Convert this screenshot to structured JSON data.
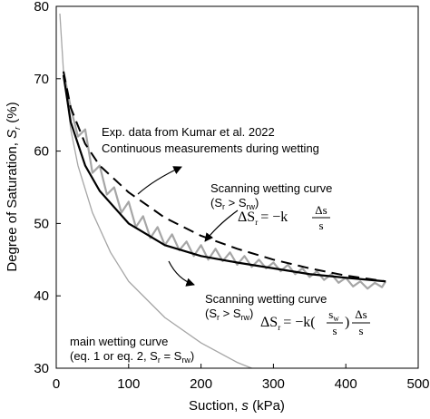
{
  "chart_data": {
    "type": "line",
    "x_label": {
      "text": "Suction, ",
      "var": "s",
      "unit": " (kPa)"
    },
    "y_label": {
      "text": "Degree of Saturation, ",
      "var": "S",
      "sub": "r",
      "unit": " (%)"
    },
    "xlim": [
      0,
      500
    ],
    "xticks": [
      0,
      100,
      200,
      300,
      400,
      500
    ],
    "ylim": [
      30,
      80
    ],
    "yticks": [
      30,
      40,
      50,
      60,
      70,
      80
    ],
    "series": [
      {
        "color": "#a6a6a6",
        "width": 1.3,
        "dash": false,
        "x": [
          5,
          10,
          20,
          30,
          50,
          75,
          100,
          150,
          200,
          250,
          270
        ],
        "values": [
          79,
          71,
          63,
          58,
          51.5,
          46,
          42,
          37,
          33.5,
          30.8,
          30
        ]
      },
      {
        "color": "#a6a6a6",
        "width": 2.2,
        "dash": false,
        "x": [
          10,
          20,
          30,
          40,
          50,
          60,
          70,
          80,
          90,
          100,
          110,
          120,
          130,
          140,
          150,
          160,
          170,
          180,
          190,
          200,
          210,
          220,
          230,
          240,
          250,
          260,
          270,
          280,
          290,
          300,
          310,
          320,
          330,
          340,
          350,
          360,
          370,
          380,
          390,
          400,
          410,
          420,
          430,
          440,
          450,
          455
        ],
        "values": [
          71,
          66,
          62,
          63,
          57,
          58,
          54,
          55,
          51.5,
          53,
          49.5,
          51,
          48,
          49.5,
          47,
          48.5,
          46.3,
          47.5,
          45.5,
          47,
          45,
          46.5,
          44.8,
          46,
          44.3,
          45.5,
          44,
          45,
          43.8,
          44.6,
          43.4,
          44.3,
          43,
          43.8,
          42.6,
          43.4,
          42.2,
          43,
          41.8,
          42.5,
          41.3,
          42,
          41,
          41.8,
          41.2,
          42
        ]
      },
      {
        "color": "#000000",
        "width": 2,
        "dash": true,
        "x": [
          10,
          20,
          40,
          60,
          100,
          150,
          200,
          250,
          300,
          350,
          400,
          455
        ],
        "values": [
          71,
          66,
          61,
          58,
          54.3,
          50.8,
          48.3,
          46.5,
          45,
          43.8,
          42.8,
          42
        ]
      },
      {
        "color": "#000000",
        "width": 2.2,
        "dash": false,
        "x": [
          10,
          20,
          40,
          60,
          100,
          150,
          200,
          250,
          300,
          350,
          400,
          455
        ],
        "values": [
          70.5,
          64,
          58,
          54.5,
          50,
          47,
          45.5,
          44.6,
          43.8,
          43,
          42.5,
          42
        ]
      }
    ],
    "annotations": {
      "exp": [
        "Exp. data from Kumar et al. 2022",
        "Continuous measurements during wetting"
      ],
      "upper": {
        "title": "Scanning wetting curve",
        "cond": [
          "(S",
          "r",
          " > S",
          "rw",
          ")"
        ],
        "eq": {
          "lhs": "ΔS",
          "lhs_sub": "r",
          "rhs": "= −k",
          "num": "Δs",
          "den": "s"
        }
      },
      "lower": {
        "title": "Scanning wetting curve",
        "cond": [
          "(S",
          "r",
          " > S",
          "rw",
          ")"
        ],
        "eq": {
          "lhs": "ΔS",
          "lhs_sub": "r",
          "rhs": "= −k(",
          "num1": "s",
          "num1_sub": "w",
          "den1": "s",
          "close": ")",
          "num2": "Δs",
          "den2": "s"
        }
      },
      "main": {
        "title": "main wetting curve",
        "cond": [
          "(eq. 1 or eq. 2,  S",
          "r",
          " = S",
          "rw",
          ")"
        ]
      }
    }
  }
}
